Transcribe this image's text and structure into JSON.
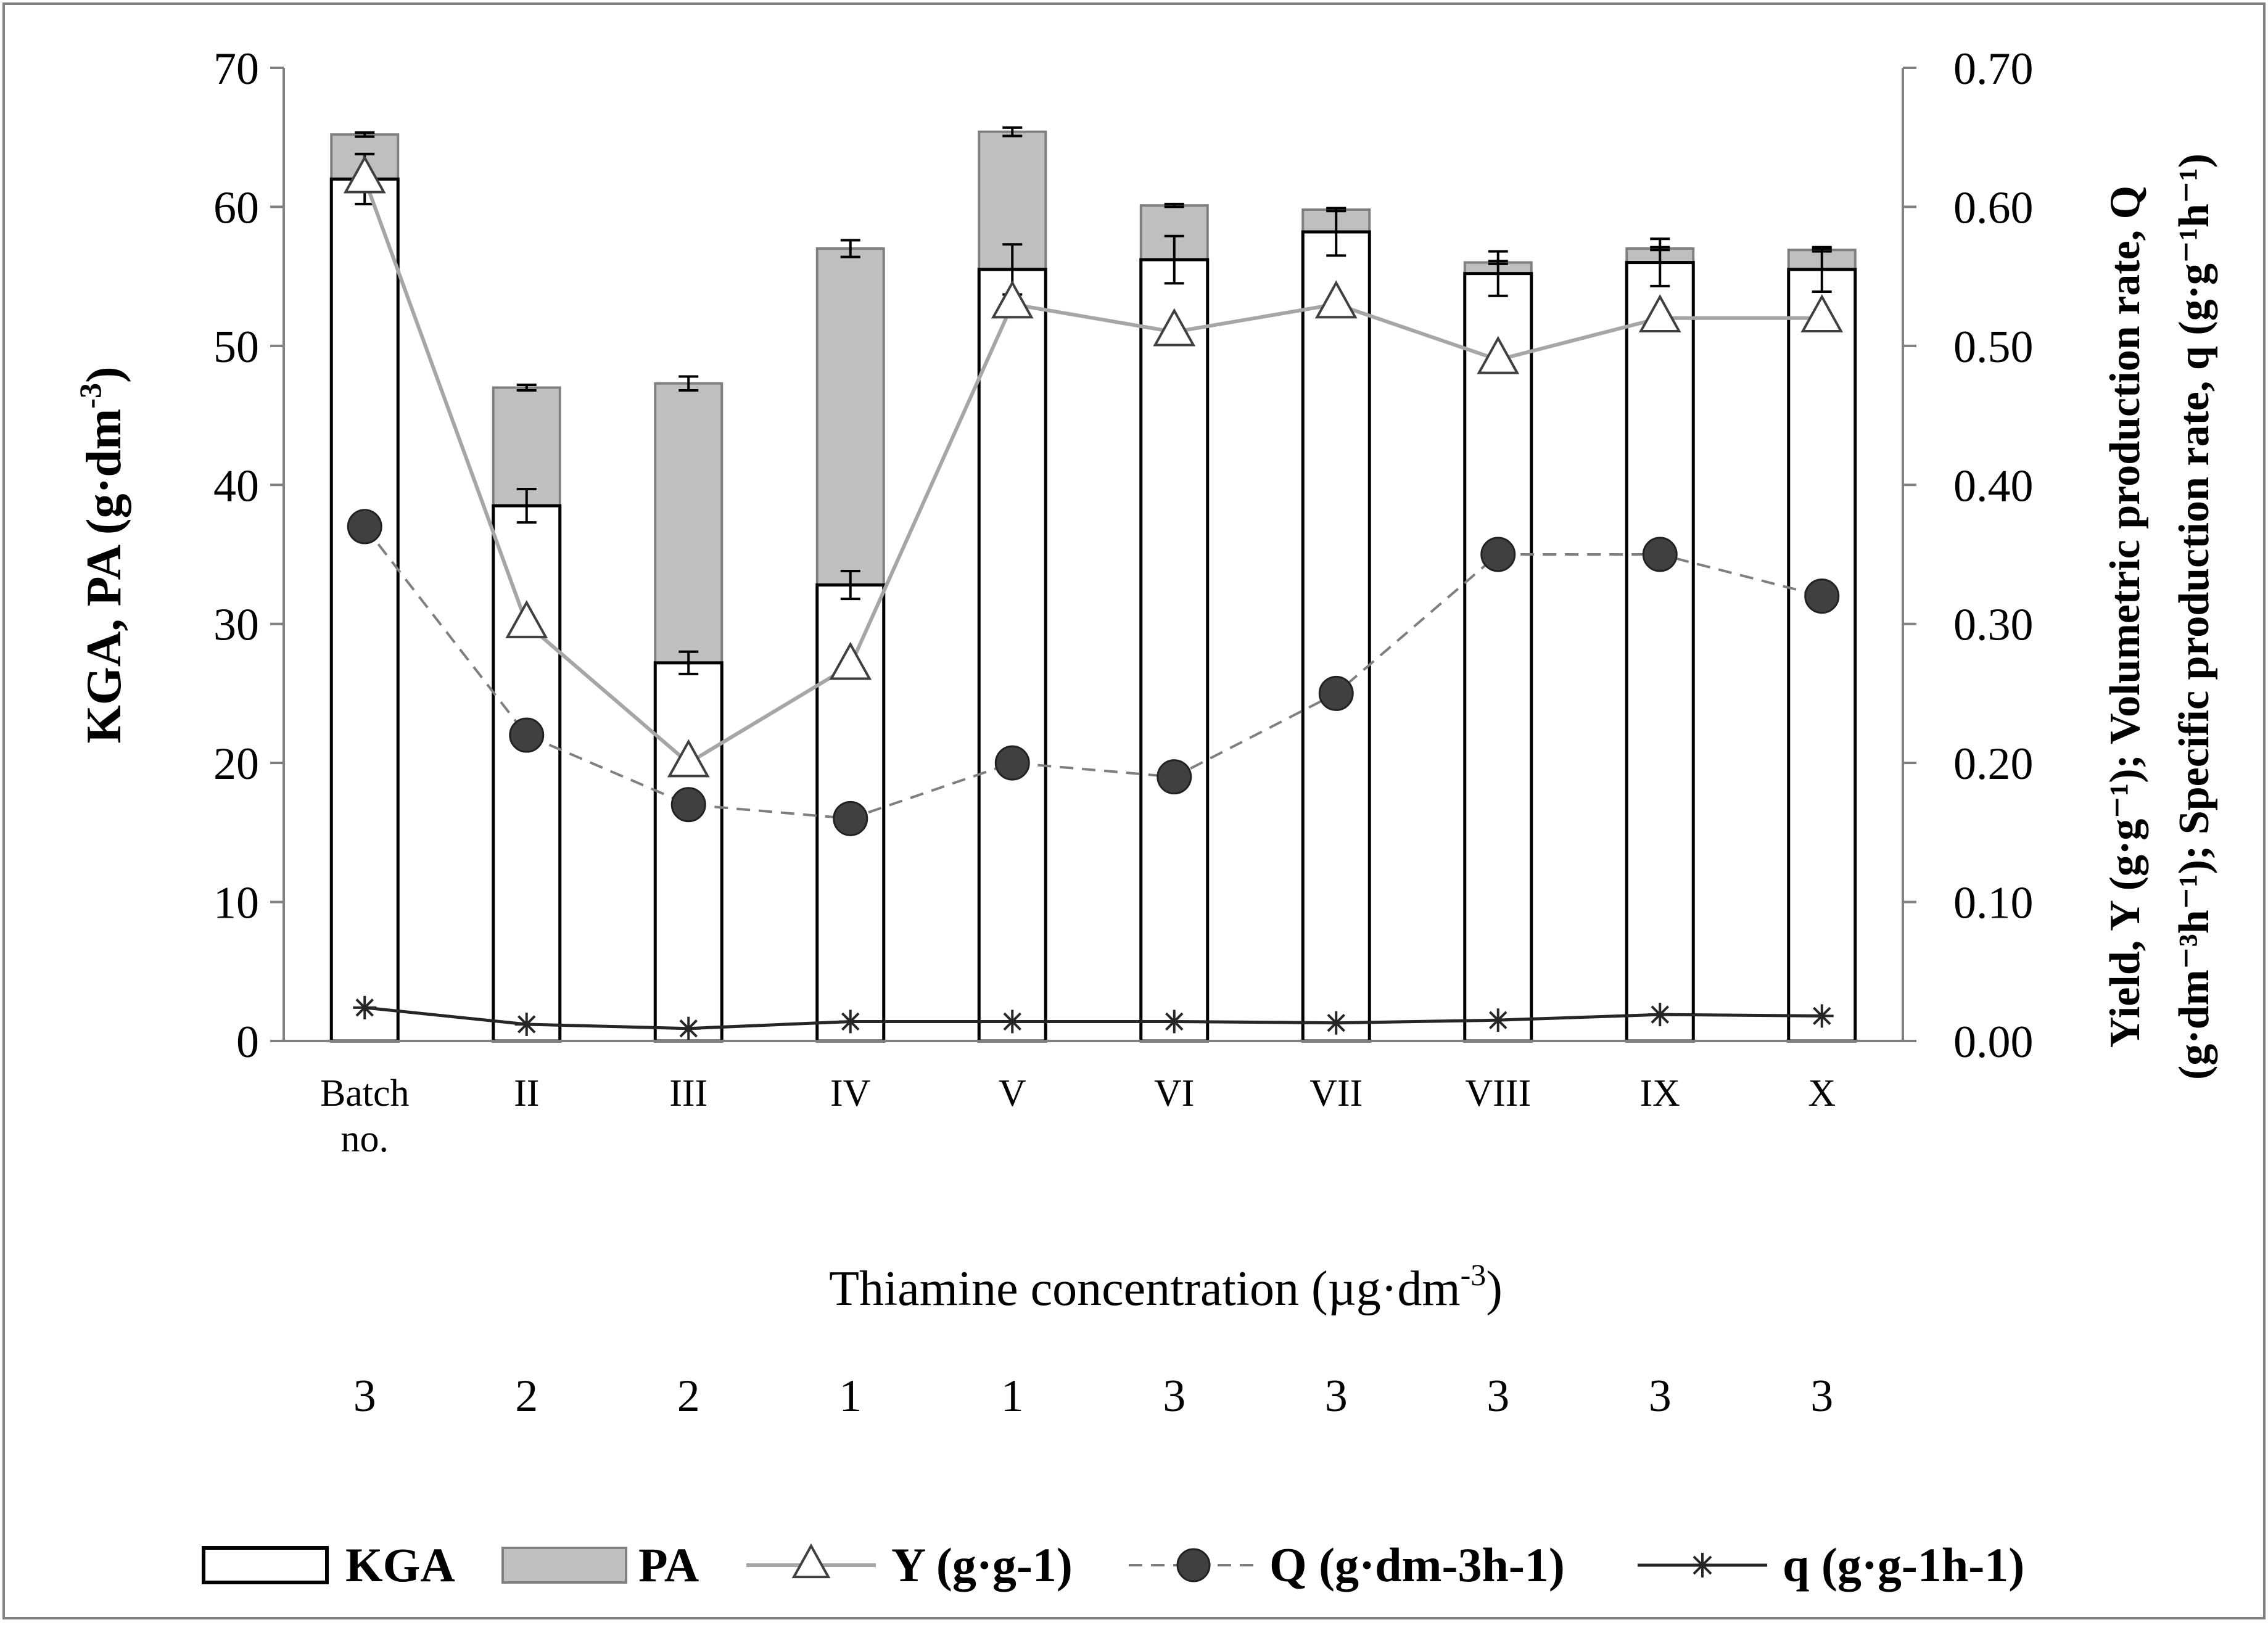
{
  "chart_data": {
    "type": "bar",
    "categories": [
      "Batch no.",
      "II",
      "III",
      "IV",
      "V",
      "VI",
      "VII",
      "VIII",
      "IX",
      "X"
    ],
    "thiamine_concentrations": [
      "3",
      "2",
      "2",
      "1",
      "1",
      "3",
      "3",
      "3",
      "3",
      "3"
    ],
    "xlabel": "Thiamine  concentration (µg·dm",
    "xlabel_sup": "-3",
    "xlabel_end": ")",
    "ylabel_left": "KGA,  PA  (g·dm",
    "ylabel_left_sup": "-3",
    "ylabel_left_end": ")",
    "ylabel_right_line1": "Yield, Y (g·g⁻¹); Volumetric production rate, Q",
    "ylabel_right_line2": "(g·dm⁻³h⁻¹);  Specific production rate, q (g·g⁻¹h⁻¹)",
    "ylim_left": [
      0,
      70
    ],
    "ylim_right": [
      0,
      0.7
    ],
    "yticks_left": [
      "0",
      "10",
      "20",
      "30",
      "40",
      "50",
      "60",
      "70"
    ],
    "yticks_right": [
      "0.00",
      "0.10",
      "0.20",
      "0.30",
      "0.40",
      "0.50",
      "0.60",
      "0.70"
    ],
    "bar_series": [
      {
        "name": "KGA",
        "values": [
          62,
          38.5,
          27.2,
          32.8,
          55.5,
          56.2,
          58.2,
          55.2,
          56,
          55.5
        ],
        "errors": [
          1.8,
          1.2,
          0.8,
          1.0,
          1.8,
          1.7,
          1.7,
          1.6,
          1.7,
          1.6
        ]
      },
      {
        "name": "PA",
        "values": [
          3.2,
          8.5,
          20.1,
          24.2,
          9.9,
          3.9,
          1.6,
          0.8,
          1.0,
          1.4
        ],
        "errors": [
          0.15,
          0.2,
          0.5,
          0.6,
          0.3,
          0.1,
          0.1,
          0.1,
          0.1,
          0.1
        ]
      }
    ],
    "line_series": [
      {
        "name": "Y (g·g-1)",
        "values": [
          0.62,
          0.3,
          0.2,
          0.27,
          0.53,
          0.51,
          0.53,
          0.49,
          0.52,
          0.52
        ]
      },
      {
        "name": "Q (g·dm-3h-1)",
        "values": [
          0.37,
          0.22,
          0.17,
          0.16,
          0.2,
          0.19,
          0.25,
          0.35,
          0.35,
          0.32
        ]
      },
      {
        "name": "q (g·g-1h-1)",
        "values": [
          0.024,
          0.012,
          0.009,
          0.014,
          0.014,
          0.014,
          0.013,
          0.015,
          0.019,
          0.018
        ]
      }
    ],
    "legend": [
      "KGA",
      "PA",
      "Y (g·g-1)",
      "Q (g·dm-3h-1)",
      "q (g·g-1h-1)"
    ],
    "legend_position": "bottom",
    "colors": {
      "kga_fill": "#ffffff",
      "pa_fill": "#bfbfbf",
      "bar_stroke": "#000000",
      "y_line": "#a6a6a6",
      "q_cap_line": "#7f7f7f",
      "q_cap_marker": "#404040",
      "q_small_line": "#262626",
      "axis": "#808080"
    }
  }
}
